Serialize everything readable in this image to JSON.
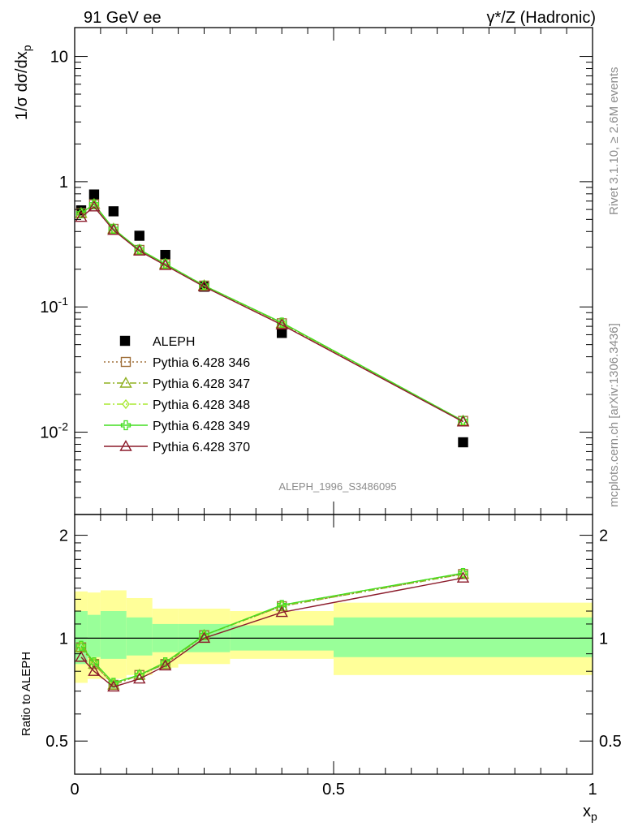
{
  "header": {
    "left": "91 GeV ee",
    "right": "γ*/Z (Hadronic)"
  },
  "side_labels": {
    "rivet": "Rivet 3.1.10, ≥ 2.6M events",
    "mcplots": "mcplots.cern.ch [arXiv:1306.3436]"
  },
  "watermark": "ALEPH_1996_S3486095",
  "colors": {
    "data": "#000000",
    "p346": "#a0703a",
    "p347": "#8fb020",
    "p348": "#a8e830",
    "p349": "#44dd22",
    "p370": "#8b1a2a",
    "band_inner": "#99ff99",
    "band_outer": "#ffff99"
  },
  "chart_data": [
    {
      "type": "scatter",
      "panel": "main",
      "ylabel": "1/σ dσ/dx_p",
      "yscale": "log",
      "ylim": [
        0.0022,
        17
      ],
      "xlim": [
        0,
        1
      ],
      "y_ticks": [
        "10",
        "1",
        "10^-1",
        "10^-2"
      ],
      "legend_position": "middle-left",
      "x": [
        0.0125,
        0.0375,
        0.075,
        0.125,
        0.175,
        0.25,
        0.4,
        0.75
      ],
      "series": [
        {
          "name": "ALEPH",
          "marker": "filled-square",
          "values": [
            0.59,
            0.79,
            0.58,
            0.37,
            0.26,
            0.145,
            0.062,
            0.0083
          ]
        },
        {
          "name": "Pythia 6.428 346",
          "marker": "open-square",
          "line": "dotted",
          "values": [
            0.56,
            0.66,
            0.42,
            0.285,
            0.22,
            0.148,
            0.074,
            0.0123
          ]
        },
        {
          "name": "Pythia 6.428 347",
          "marker": "open-triangle",
          "line": "dash-dot",
          "values": [
            0.56,
            0.66,
            0.42,
            0.285,
            0.22,
            0.148,
            0.074,
            0.0123
          ]
        },
        {
          "name": "Pythia 6.428 348",
          "marker": "open-diamond",
          "line": "dash-dot",
          "values": [
            0.56,
            0.66,
            0.42,
            0.287,
            0.221,
            0.148,
            0.075,
            0.0123
          ]
        },
        {
          "name": "Pythia 6.428 349",
          "marker": "open-cross",
          "line": "solid",
          "values": [
            0.56,
            0.66,
            0.42,
            0.287,
            0.221,
            0.148,
            0.075,
            0.0123
          ]
        },
        {
          "name": "Pythia 6.428 370",
          "marker": "open-triangle",
          "line": "solid",
          "values": [
            0.52,
            0.63,
            0.41,
            0.28,
            0.215,
            0.145,
            0.072,
            0.0121
          ]
        }
      ]
    },
    {
      "type": "line",
      "panel": "ratio",
      "ylabel": "Ratio to ALEPH",
      "xlabel": "x_p",
      "yscale": "log",
      "ylim": [
        0.4,
        2.3
      ],
      "xlim": [
        0,
        1
      ],
      "x_ticks": [
        "0",
        "0.5",
        "1"
      ],
      "y_ticks": [
        "2",
        "1",
        "0.5"
      ],
      "bands": [
        {
          "x0": 0.0,
          "x1": 0.025,
          "inner": [
            0.84,
            1.2
          ],
          "outer": [
            0.74,
            1.37
          ]
        },
        {
          "x0": 0.025,
          "x1": 0.05,
          "inner": [
            0.88,
            1.17
          ],
          "outer": [
            0.76,
            1.36
          ]
        },
        {
          "x0": 0.05,
          "x1": 0.1,
          "inner": [
            0.87,
            1.2
          ],
          "outer": [
            0.76,
            1.38
          ]
        },
        {
          "x0": 0.1,
          "x1": 0.15,
          "inner": [
            0.89,
            1.15
          ],
          "outer": [
            0.78,
            1.31
          ]
        },
        {
          "x0": 0.15,
          "x1": 0.2,
          "inner": [
            0.91,
            1.1
          ],
          "outer": [
            0.82,
            1.22
          ]
        },
        {
          "x0": 0.2,
          "x1": 0.3,
          "inner": [
            0.91,
            1.1
          ],
          "outer": [
            0.84,
            1.22
          ]
        },
        {
          "x0": 0.3,
          "x1": 0.5,
          "inner": [
            0.92,
            1.09
          ],
          "outer": [
            0.87,
            1.2
          ]
        },
        {
          "x0": 0.5,
          "x1": 1.0,
          "inner": [
            0.88,
            1.15
          ],
          "outer": [
            0.78,
            1.27
          ]
        }
      ],
      "x": [
        0.0125,
        0.0375,
        0.075,
        0.125,
        0.175,
        0.25,
        0.4,
        0.75
      ],
      "series": [
        {
          "name": "Pythia 6.428 346",
          "values": [
            0.94,
            0.84,
            0.73,
            0.78,
            0.84,
            1.02,
            1.24,
            1.54
          ]
        },
        {
          "name": "Pythia 6.428 347",
          "values": [
            0.94,
            0.84,
            0.73,
            0.78,
            0.84,
            1.02,
            1.24,
            1.54
          ]
        },
        {
          "name": "Pythia 6.428 348",
          "values": [
            0.95,
            0.85,
            0.74,
            0.78,
            0.85,
            1.02,
            1.25,
            1.55
          ]
        },
        {
          "name": "Pythia 6.428 349",
          "values": [
            0.95,
            0.85,
            0.74,
            0.78,
            0.85,
            1.02,
            1.25,
            1.55
          ]
        },
        {
          "name": "Pythia 6.428 370",
          "values": [
            0.88,
            0.8,
            0.72,
            0.76,
            0.83,
            1.0,
            1.19,
            1.5
          ]
        }
      ]
    }
  ]
}
